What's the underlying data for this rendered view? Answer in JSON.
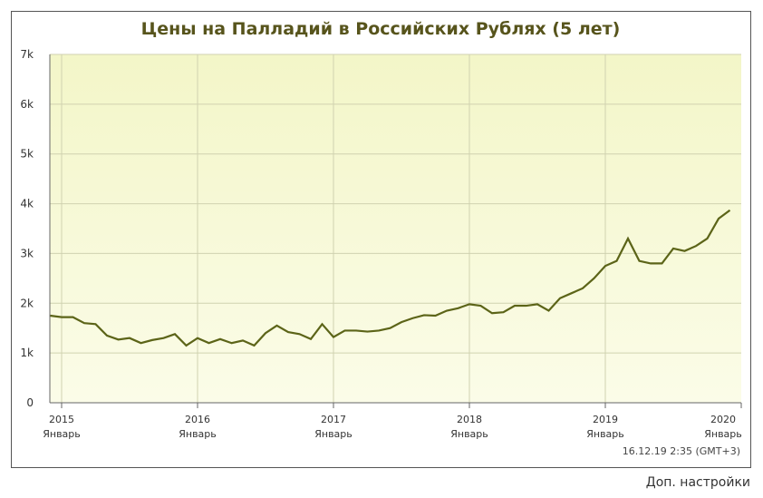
{
  "chart_data": {
    "type": "line",
    "title": "Цены на Палладий в Российских Рублях (5 лет)",
    "x": [
      "2014-12",
      "2015-01",
      "2015-02",
      "2015-03",
      "2015-04",
      "2015-05",
      "2015-06",
      "2015-07",
      "2015-08",
      "2015-09",
      "2015-10",
      "2015-11",
      "2015-12",
      "2016-01",
      "2016-02",
      "2016-03",
      "2016-04",
      "2016-05",
      "2016-06",
      "2016-07",
      "2016-08",
      "2016-09",
      "2016-10",
      "2016-11",
      "2016-12",
      "2017-01",
      "2017-02",
      "2017-03",
      "2017-04",
      "2017-05",
      "2017-06",
      "2017-07",
      "2017-08",
      "2017-09",
      "2017-10",
      "2017-11",
      "2017-12",
      "2018-01",
      "2018-02",
      "2018-03",
      "2018-04",
      "2018-05",
      "2018-06",
      "2018-07",
      "2018-08",
      "2018-09",
      "2018-10",
      "2018-11",
      "2018-12",
      "2019-01",
      "2019-02",
      "2019-03",
      "2019-04",
      "2019-05",
      "2019-06",
      "2019-07",
      "2019-08",
      "2019-09",
      "2019-10",
      "2019-11",
      "2019-12"
    ],
    "series": [
      {
        "name": "Палладий",
        "color": "#5c6418",
        "values": [
          1750,
          1720,
          1720,
          1600,
          1580,
          1350,
          1270,
          1300,
          1200,
          1260,
          1300,
          1380,
          1150,
          1300,
          1200,
          1280,
          1200,
          1250,
          1150,
          1400,
          1550,
          1420,
          1380,
          1280,
          1580,
          1320,
          1450,
          1450,
          1430,
          1450,
          1500,
          1620,
          1700,
          1760,
          1750,
          1850,
          1900,
          1980,
          1950,
          1800,
          1820,
          1950,
          1950,
          1980,
          1850,
          2100,
          2200,
          2300,
          2500,
          2750,
          2850,
          3300,
          2850,
          2800,
          2800,
          3100,
          3050,
          3150,
          3300,
          3700,
          3870
        ]
      }
    ],
    "ylim": [
      0,
      7000
    ],
    "yticks": [
      {
        "value": 0,
        "label": "0"
      },
      {
        "value": 1000,
        "label": "1k"
      },
      {
        "value": 2000,
        "label": "2k"
      },
      {
        "value": 3000,
        "label": "3k"
      },
      {
        "value": 4000,
        "label": "4k"
      },
      {
        "value": 5000,
        "label": "5k"
      },
      {
        "value": 6000,
        "label": "6k"
      },
      {
        "value": 7000,
        "label": "7k"
      }
    ],
    "xticks": [
      {
        "value": "2015-01",
        "label": "2015",
        "month": "Январь"
      },
      {
        "value": "2016-01",
        "label": "2016",
        "month": "Январь"
      },
      {
        "value": "2017-01",
        "label": "2017",
        "month": "Январь"
      },
      {
        "value": "2018-01",
        "label": "2018",
        "month": "Январь"
      },
      {
        "value": "2019-01",
        "label": "2019",
        "month": "Январь"
      },
      {
        "value": "2020-01",
        "label": "2020",
        "month": "Январь"
      }
    ],
    "grid": true,
    "timestamp": "16.12.19 2:35 (GMT+3)"
  },
  "link": "Доп. настройки"
}
